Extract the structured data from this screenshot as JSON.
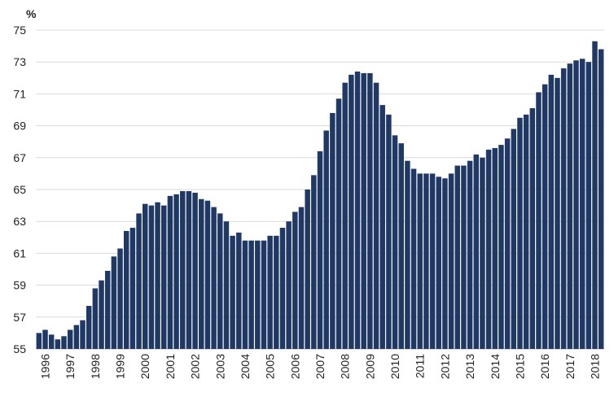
{
  "chart_data": {
    "type": "bar",
    "title": "",
    "xlabel": "",
    "ylabel": "%",
    "ylim": [
      55,
      75
    ],
    "yticks": [
      55,
      57,
      59,
      61,
      63,
      65,
      67,
      69,
      71,
      73,
      75
    ],
    "grid": true,
    "legend": "none",
    "bar_color": "#1f3864",
    "grid_color": "#d9d9d9",
    "x_labels": [
      "1996",
      "1997",
      "1998",
      "1999",
      "2000",
      "2001",
      "2002",
      "2003",
      "2004",
      "2005",
      "2006",
      "2007",
      "2008",
      "2009",
      "2010",
      "2011",
      "2012",
      "2013",
      "2014",
      "2015",
      "2016",
      "2017",
      "2018"
    ],
    "values": [
      56.0,
      56.2,
      55.9,
      55.6,
      55.8,
      56.2,
      56.5,
      56.8,
      57.7,
      58.8,
      59.3,
      59.9,
      60.8,
      61.3,
      62.4,
      62.6,
      63.5,
      64.1,
      64.0,
      64.2,
      64.0,
      64.6,
      64.7,
      64.9,
      64.9,
      64.8,
      64.4,
      64.3,
      63.9,
      63.5,
      63.0,
      62.1,
      62.3,
      61.8,
      61.8,
      61.8,
      61.8,
      62.1,
      62.1,
      62.6,
      63.0,
      63.6,
      63.9,
      65.0,
      65.9,
      67.4,
      68.7,
      69.8,
      70.7,
      71.7,
      72.2,
      72.4,
      72.3,
      72.3,
      71.7,
      70.3,
      69.7,
      68.4,
      67.9,
      66.8,
      66.3,
      66.0,
      66.0,
      66.0,
      65.8,
      65.7,
      66.0,
      66.5,
      66.5,
      66.8,
      67.2,
      67.0,
      67.5,
      67.6,
      67.8,
      68.2,
      68.8,
      69.5,
      69.7,
      70.1,
      71.1,
      71.6,
      72.2,
      72.0,
      72.6,
      72.9,
      73.1,
      73.2,
      73.0,
      74.3,
      73.8
    ]
  }
}
